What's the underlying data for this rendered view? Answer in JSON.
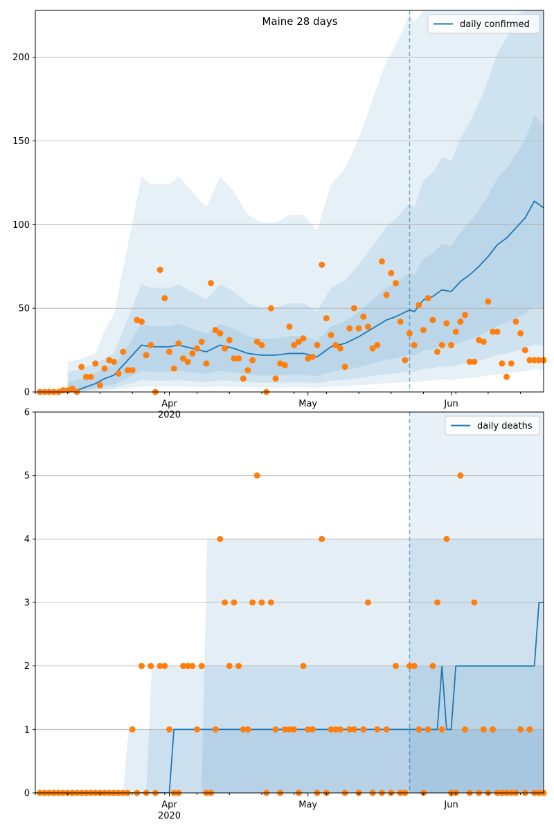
{
  "chart_data": [
    {
      "type": "line",
      "title": "Maine 28 days",
      "xlabel": "",
      "ylabel": "",
      "x_axis": {
        "kind": "date",
        "start": "2020-03-03",
        "end": "2020-06-21"
      },
      "ylim": [
        0,
        228
      ],
      "yticks": [
        0,
        50,
        100,
        150,
        200
      ],
      "xticks": [
        {
          "date": "2020-04-01",
          "label": "Apr",
          "sublabel": "2020"
        },
        {
          "date": "2020-05-01",
          "label": "May",
          "sublabel": ""
        },
        {
          "date": "2020-06-01",
          "label": "Jun",
          "sublabel": ""
        }
      ],
      "grid": "horizontal",
      "legend": {
        "position": "top-right"
      },
      "forecast_start": "2020-05-23",
      "series": [
        {
          "name": "daily confirmed",
          "kind": "line",
          "color": "#1f77b4",
          "x": [
            "2020-03-10",
            "2020-03-12",
            "2020-03-14",
            "2020-03-16",
            "2020-03-18",
            "2020-03-20",
            "2020-03-22",
            "2020-03-24",
            "2020-03-26",
            "2020-03-28",
            "2020-03-30",
            "2020-04-01",
            "2020-04-03",
            "2020-04-06",
            "2020-04-09",
            "2020-04-12",
            "2020-04-15",
            "2020-04-18",
            "2020-04-21",
            "2020-04-24",
            "2020-04-27",
            "2020-04-30",
            "2020-05-03",
            "2020-05-06",
            "2020-05-09",
            "2020-05-12",
            "2020-05-15",
            "2020-05-18",
            "2020-05-20",
            "2020-05-23",
            "2020-05-24",
            "2020-05-26",
            "2020-05-28",
            "2020-05-30",
            "2020-06-01",
            "2020-06-03",
            "2020-06-05",
            "2020-06-07",
            "2020-06-09",
            "2020-06-11",
            "2020-06-13",
            "2020-06-15",
            "2020-06-17",
            "2020-06-19",
            "2020-06-20",
            "2020-06-21"
          ],
          "y": [
            0,
            1,
            3,
            5,
            8,
            10,
            16,
            22,
            28,
            27,
            27,
            27,
            28,
            26,
            24,
            28,
            26,
            23,
            22,
            22,
            23,
            23,
            21,
            27,
            29,
            33,
            38,
            43,
            45,
            49,
            48,
            55,
            57,
            61,
            60,
            66,
            70,
            75,
            81,
            88,
            92,
            98,
            104,
            114,
            112,
            110
          ]
        },
        {
          "name": "",
          "kind": "scatter",
          "color": "#ff7f0e",
          "x": [
            "2020-03-04",
            "2020-03-05",
            "2020-03-06",
            "2020-03-07",
            "2020-03-08",
            "2020-03-09",
            "2020-03-10",
            "2020-03-11",
            "2020-03-12",
            "2020-03-13",
            "2020-03-14",
            "2020-03-15",
            "2020-03-16",
            "2020-03-17",
            "2020-03-18",
            "2020-03-19",
            "2020-03-20",
            "2020-03-21",
            "2020-03-22",
            "2020-03-23",
            "2020-03-24",
            "2020-03-25",
            "2020-03-26",
            "2020-03-27",
            "2020-03-28",
            "2020-03-29",
            "2020-03-30",
            "2020-03-31",
            "2020-04-01",
            "2020-04-02",
            "2020-04-03",
            "2020-04-04",
            "2020-04-05",
            "2020-04-06",
            "2020-04-07",
            "2020-04-08",
            "2020-04-09",
            "2020-04-10",
            "2020-04-11",
            "2020-04-12",
            "2020-04-13",
            "2020-04-14",
            "2020-04-15",
            "2020-04-16",
            "2020-04-17",
            "2020-04-18",
            "2020-04-19",
            "2020-04-20",
            "2020-04-21",
            "2020-04-22",
            "2020-04-23",
            "2020-04-24",
            "2020-04-25",
            "2020-04-26",
            "2020-04-27",
            "2020-04-28",
            "2020-04-29",
            "2020-04-30",
            "2020-05-01",
            "2020-05-02",
            "2020-05-03",
            "2020-05-04",
            "2020-05-05",
            "2020-05-06",
            "2020-05-07",
            "2020-05-08",
            "2020-05-09",
            "2020-05-10",
            "2020-05-11",
            "2020-05-12",
            "2020-05-13",
            "2020-05-14",
            "2020-05-15",
            "2020-05-16",
            "2020-05-17",
            "2020-05-18",
            "2020-05-19",
            "2020-05-20",
            "2020-05-21",
            "2020-05-22",
            "2020-05-23",
            "2020-05-24",
            "2020-05-25",
            "2020-05-26",
            "2020-05-27",
            "2020-05-28",
            "2020-05-29",
            "2020-05-30",
            "2020-05-31",
            "2020-06-01",
            "2020-06-02",
            "2020-06-03",
            "2020-06-04",
            "2020-06-05",
            "2020-06-06",
            "2020-06-07",
            "2020-06-08",
            "2020-06-09",
            "2020-06-10",
            "2020-06-11",
            "2020-06-12",
            "2020-06-13",
            "2020-06-14",
            "2020-06-15",
            "2020-06-16",
            "2020-06-17",
            "2020-06-18",
            "2020-06-19",
            "2020-06-20",
            "2020-06-21"
          ],
          "y": [
            0,
            0,
            0,
            0,
            0,
            1,
            1,
            2,
            0,
            15,
            9,
            9,
            17,
            4,
            14,
            19,
            18,
            11,
            24,
            13,
            13,
            43,
            42,
            22,
            28,
            0,
            73,
            56,
            24,
            14,
            29,
            20,
            18,
            23,
            26,
            30,
            17,
            65,
            37,
            35,
            26,
            31,
            20,
            20,
            8,
            13,
            19,
            30,
            28,
            0,
            50,
            8,
            17,
            16,
            39,
            28,
            30,
            32,
            20,
            21,
            28,
            76,
            44,
            34,
            28,
            26,
            15,
            38,
            50,
            38,
            45,
            39,
            26,
            28,
            78,
            58,
            71,
            65,
            42,
            19,
            35,
            28,
            52,
            37,
            56,
            43,
            24,
            28,
            41,
            28,
            36,
            42,
            46,
            18,
            18,
            31,
            30,
            54,
            36,
            36,
            17,
            9,
            17,
            42,
            35,
            25,
            19,
            19,
            19,
            19
          ]
        }
      ]
    },
    {
      "type": "line",
      "title": "",
      "xlabel": "",
      "ylabel": "",
      "x_axis": {
        "kind": "date",
        "start": "2020-03-03",
        "end": "2020-06-21"
      },
      "ylim": [
        0,
        6
      ],
      "yticks": [
        0,
        1,
        2,
        3,
        4,
        5,
        6
      ],
      "xticks": [
        {
          "date": "2020-04-01",
          "label": "Apr",
          "sublabel": "2020"
        },
        {
          "date": "2020-05-01",
          "label": "May",
          "sublabel": ""
        },
        {
          "date": "2020-06-01",
          "label": "Jun",
          "sublabel": ""
        }
      ],
      "grid": "horizontal",
      "legend": {
        "position": "top-right"
      },
      "forecast_start": "2020-05-23",
      "series": [
        {
          "name": "daily deaths",
          "kind": "line",
          "color": "#1f77b4",
          "x": [
            "2020-03-03",
            "2020-04-01",
            "2020-04-02",
            "2020-05-29",
            "2020-05-30",
            "2020-05-31",
            "2020-06-01",
            "2020-06-02",
            "2020-06-19",
            "2020-06-20",
            "2020-06-21"
          ],
          "y": [
            0,
            0,
            1,
            1,
            2,
            1,
            1,
            2,
            2,
            3,
            3
          ]
        },
        {
          "name": "",
          "kind": "scatter",
          "color": "#ff7f0e",
          "x": [
            "2020-03-04",
            "2020-03-05",
            "2020-03-06",
            "2020-03-07",
            "2020-03-08",
            "2020-03-09",
            "2020-03-10",
            "2020-03-11",
            "2020-03-12",
            "2020-03-13",
            "2020-03-14",
            "2020-03-15",
            "2020-03-16",
            "2020-03-17",
            "2020-03-18",
            "2020-03-19",
            "2020-03-20",
            "2020-03-21",
            "2020-03-22",
            "2020-03-23",
            "2020-03-24",
            "2020-03-25",
            "2020-03-26",
            "2020-03-27",
            "2020-03-28",
            "2020-03-29",
            "2020-03-30",
            "2020-03-31",
            "2020-04-01",
            "2020-04-02",
            "2020-04-03",
            "2020-04-04",
            "2020-04-05",
            "2020-04-06",
            "2020-04-07",
            "2020-04-08",
            "2020-04-09",
            "2020-04-10",
            "2020-04-11",
            "2020-04-12",
            "2020-04-13",
            "2020-04-14",
            "2020-04-15",
            "2020-04-16",
            "2020-04-17",
            "2020-04-18",
            "2020-04-19",
            "2020-04-20",
            "2020-04-21",
            "2020-04-22",
            "2020-04-23",
            "2020-04-24",
            "2020-04-25",
            "2020-04-26",
            "2020-04-27",
            "2020-04-28",
            "2020-04-29",
            "2020-04-30",
            "2020-05-01",
            "2020-05-02",
            "2020-05-03",
            "2020-05-04",
            "2020-05-05",
            "2020-05-06",
            "2020-05-07",
            "2020-05-08",
            "2020-05-09",
            "2020-05-10",
            "2020-05-11",
            "2020-05-12",
            "2020-05-13",
            "2020-05-14",
            "2020-05-15",
            "2020-05-16",
            "2020-05-17",
            "2020-05-18",
            "2020-05-19",
            "2020-05-20",
            "2020-05-21",
            "2020-05-22",
            "2020-05-23",
            "2020-05-24",
            "2020-05-25",
            "2020-05-26",
            "2020-05-27",
            "2020-05-28",
            "2020-05-29",
            "2020-05-30",
            "2020-05-31",
            "2020-06-01",
            "2020-06-02",
            "2020-06-03",
            "2020-06-04",
            "2020-06-05",
            "2020-06-06",
            "2020-06-07",
            "2020-06-08",
            "2020-06-09",
            "2020-06-10",
            "2020-06-11",
            "2020-06-12",
            "2020-06-13",
            "2020-06-14",
            "2020-06-15",
            "2020-06-16",
            "2020-06-17",
            "2020-06-18",
            "2020-06-19",
            "2020-06-20",
            "2020-06-21"
          ],
          "y": [
            0,
            0,
            0,
            0,
            0,
            0,
            0,
            0,
            0,
            0,
            0,
            0,
            0,
            0,
            0,
            0,
            0,
            0,
            0,
            0,
            1,
            0,
            2,
            0,
            2,
            0,
            2,
            2,
            1,
            0,
            0,
            2,
            2,
            2,
            1,
            2,
            0,
            0,
            1,
            4,
            3,
            2,
            3,
            2,
            1,
            1,
            3,
            5,
            3,
            0,
            3,
            1,
            0,
            1,
            1,
            1,
            0,
            2,
            1,
            1,
            0,
            4,
            0,
            1,
            1,
            1,
            0,
            1,
            1,
            0,
            1,
            3,
            0,
            1,
            0,
            1,
            0,
            2,
            0,
            0,
            2,
            2,
            1,
            0,
            1,
            2,
            3,
            1,
            4,
            0,
            0,
            5,
            1,
            0,
            3,
            0,
            1,
            0,
            1,
            0,
            0,
            0,
            0,
            0,
            1,
            0,
            1,
            0,
            0,
            0
          ]
        }
      ]
    }
  ]
}
